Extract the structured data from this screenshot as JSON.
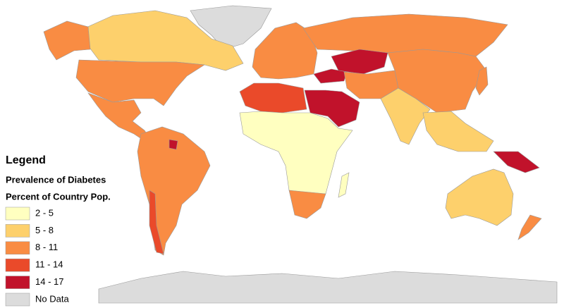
{
  "legend": {
    "title": "Legend",
    "subtitle_1": "Prevalence of Diabetes",
    "subtitle_2": "Percent of Country Pop.",
    "items": [
      {
        "label": "2 - 5",
        "color": "#ffffc0"
      },
      {
        "label": "5 - 8",
        "color": "#fdd06c"
      },
      {
        "label": "8 - 11",
        "color": "#f98c43"
      },
      {
        "label": "11 - 14",
        "color": "#ea4a2a"
      },
      {
        "label": "14 - 17",
        "color": "#c1122b"
      },
      {
        "label": "No Data",
        "color": "#dcdcdc"
      }
    ]
  }
}
